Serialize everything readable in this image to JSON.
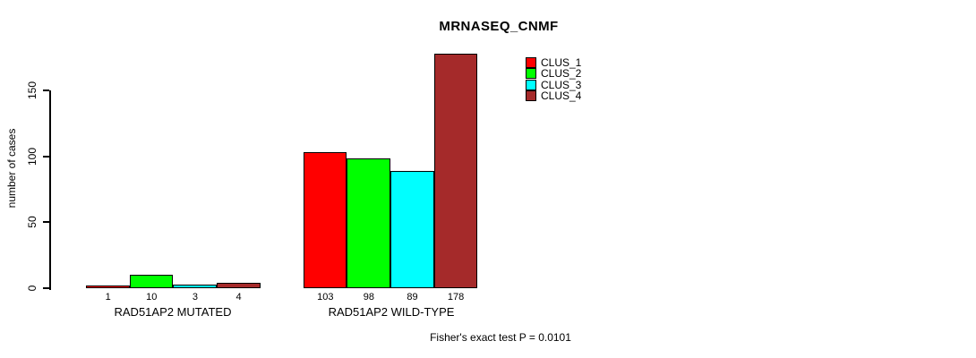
{
  "chart_data": {
    "type": "bar",
    "title": "MRNASEQ_CNMF",
    "xlabel": "",
    "ylabel": "number of cases",
    "ylim": [
      0,
      178
    ],
    "yticks": [
      0,
      50,
      100,
      150
    ],
    "grid": false,
    "legend_position": "top-right",
    "categories": [
      "RAD51AP2 MUTATED",
      "RAD51AP2 WILD-TYPE"
    ],
    "series": [
      {
        "name": "CLUS_1",
        "color": "#ff0000",
        "values": [
          1,
          103
        ]
      },
      {
        "name": "CLUS_2",
        "color": "#00ff00",
        "values": [
          10,
          98
        ]
      },
      {
        "name": "CLUS_3",
        "color": "#00ffff",
        "values": [
          3,
          89
        ]
      },
      {
        "name": "CLUS_4",
        "color": "#a52a2a",
        "values": [
          4,
          178
        ]
      }
    ],
    "groups": [
      {
        "label": "RAD51AP2 MUTATED",
        "values": [
          1,
          10,
          3,
          4
        ]
      },
      {
        "label": "RAD51AP2 WILD-TYPE",
        "values": [
          103,
          98,
          89,
          178
        ]
      }
    ],
    "annotation": "Fisher's exact test P = 0.0101"
  }
}
